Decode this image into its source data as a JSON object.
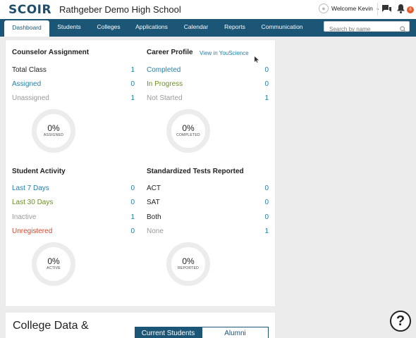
{
  "header": {
    "logo": "SCOIR",
    "school_name": "Rathgeber Demo High School",
    "welcome": "Welcome Kevin",
    "notification_count": "8"
  },
  "nav": {
    "tabs": [
      "Dashboard",
      "Students",
      "Colleges",
      "Applications",
      "Calendar",
      "Reports",
      "Communication"
    ],
    "active": "Dashboard",
    "search_placeholder": "Search by name"
  },
  "counselor": {
    "title": "Counselor Assignment",
    "rows": [
      {
        "label": "Total Class",
        "value": "1"
      },
      {
        "label": "Assigned",
        "value": "0"
      },
      {
        "label": "Unassigned",
        "value": "1"
      }
    ],
    "donut_pct": "0%",
    "donut_caption": "ASSIGNED"
  },
  "career": {
    "title": "Career Profile",
    "link": "View in YouScience",
    "rows": [
      {
        "label": "Completed",
        "value": "0"
      },
      {
        "label": "In Progress",
        "value": "0"
      },
      {
        "label": "Not Started",
        "value": "1"
      }
    ],
    "donut_pct": "0%",
    "donut_caption": "COMPLETED"
  },
  "activity": {
    "title": "Student Activity",
    "rows": [
      {
        "label": "Last 7 Days",
        "value": "0"
      },
      {
        "label": "Last 30 Days",
        "value": "0"
      },
      {
        "label": "Inactive",
        "value": "1"
      },
      {
        "label": "Unregistered",
        "value": "0"
      }
    ],
    "donut_pct": "0%",
    "donut_caption": "ACTIVE"
  },
  "tests": {
    "title": "Standardized Tests Reported",
    "rows": [
      {
        "label": "ACT",
        "value": "0"
      },
      {
        "label": "SAT",
        "value": "0"
      },
      {
        "label": "Both",
        "value": "0"
      },
      {
        "label": "None",
        "value": "1"
      }
    ],
    "donut_pct": "0%",
    "donut_caption": "REPORTED"
  },
  "college_data": {
    "title": "College Data &",
    "segments": [
      "Current Students",
      "Alumni"
    ]
  },
  "help": "?",
  "colors": {
    "nav_bg": "#1b5677",
    "link_blue": "#1f7fae",
    "green": "#6b8e23",
    "red": "#d9452b",
    "badge": "#e85a2c"
  }
}
